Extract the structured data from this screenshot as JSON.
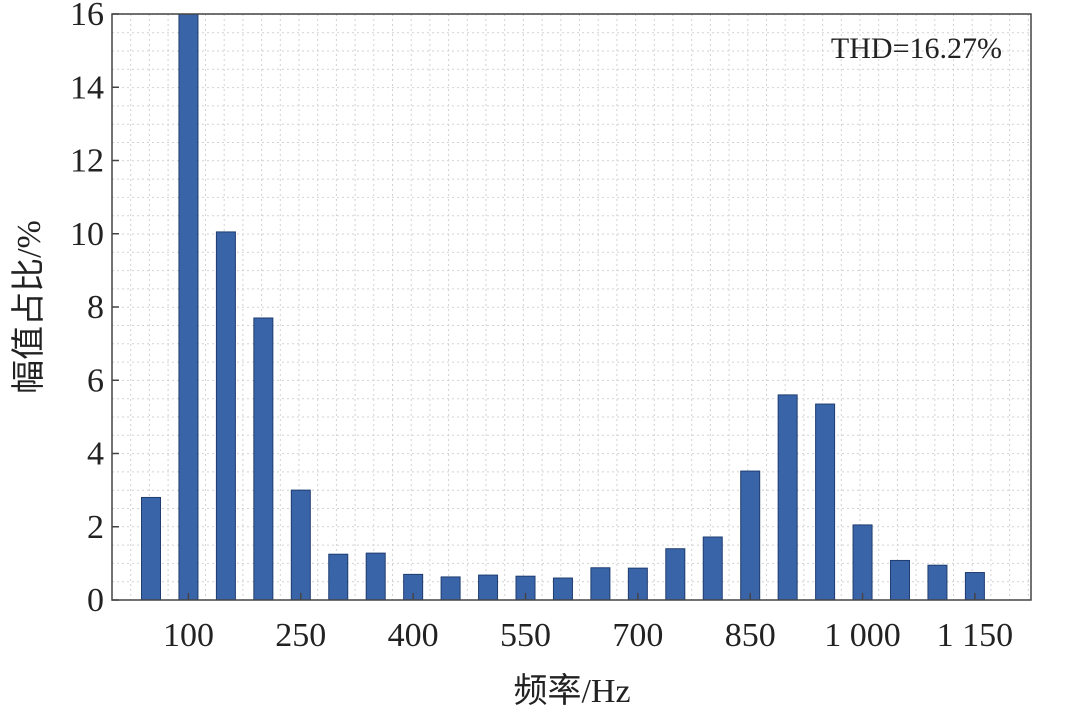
{
  "chart_data": {
    "type": "bar",
    "x": [
      50,
      100,
      150,
      200,
      250,
      300,
      350,
      400,
      450,
      500,
      550,
      600,
      650,
      700,
      750,
      800,
      850,
      900,
      950,
      1000,
      1050,
      1100,
      1150
    ],
    "values": [
      2.8,
      16.0,
      10.05,
      7.7,
      3.0,
      1.25,
      1.28,
      0.7,
      0.63,
      0.68,
      0.65,
      0.6,
      0.88,
      0.87,
      1.4,
      1.72,
      3.52,
      5.6,
      5.35,
      2.05,
      1.08,
      0.95,
      0.75
    ],
    "x_ticks": [
      100,
      250,
      400,
      550,
      700,
      850,
      1000,
      1150
    ],
    "x_tick_labels": [
      "100",
      "250",
      "400",
      "550",
      "700",
      "850",
      "1 000",
      "1 150"
    ],
    "y_ticks": [
      0,
      2,
      4,
      6,
      8,
      10,
      12,
      14,
      16
    ],
    "y_tick_labels": [
      "0",
      "2",
      "4",
      "6",
      "8",
      "10",
      "12",
      "14",
      "16"
    ],
    "ylim": [
      0,
      16
    ],
    "xlabel": "频率/Hz",
    "ylabel": "幅值占比/%",
    "annotation": "THD=16.27%",
    "grid": true,
    "bar_color": "#3a64a8",
    "bar_edge_color": "#1f3d70"
  }
}
